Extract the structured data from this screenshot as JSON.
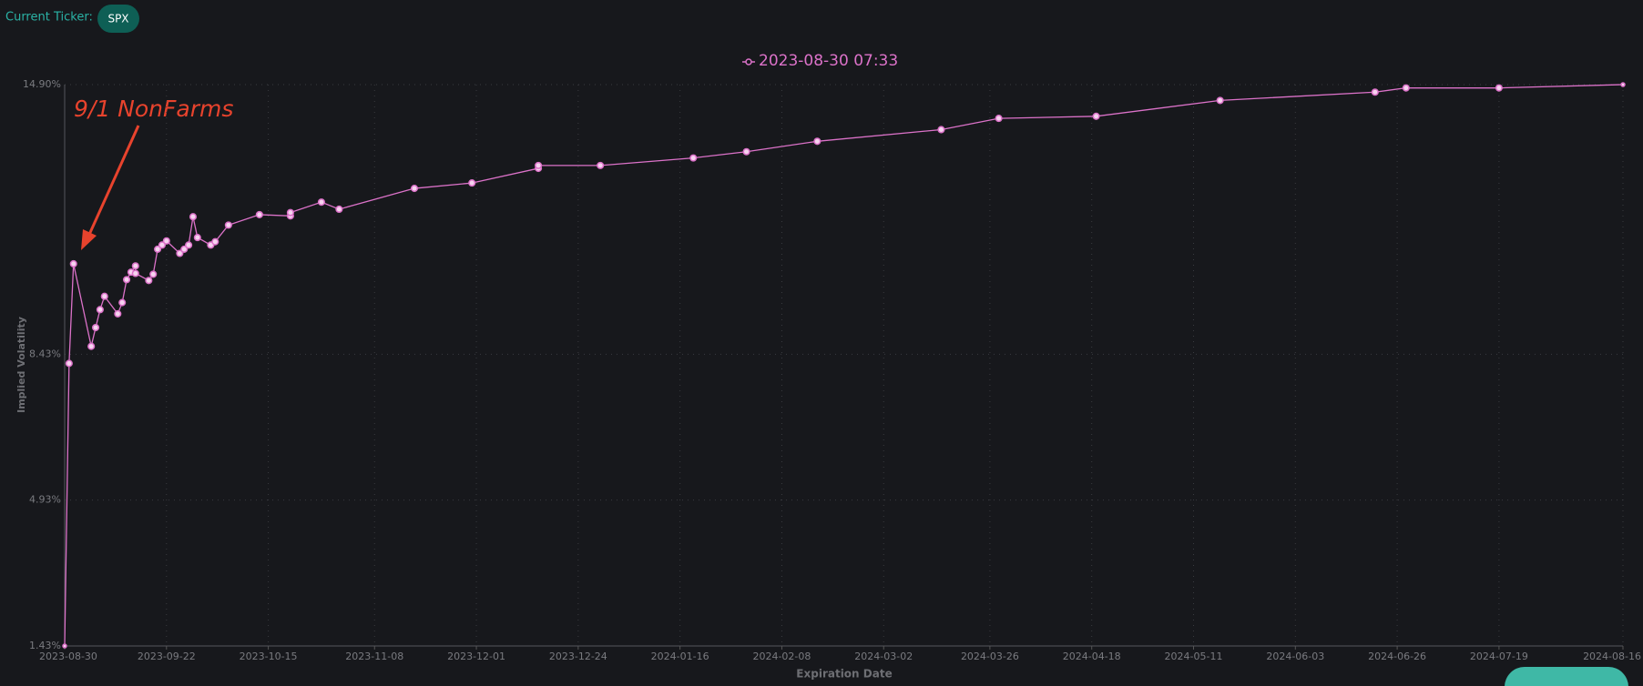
{
  "header": {
    "label": "Current Ticker:",
    "ticker": "SPX"
  },
  "chart_data": {
    "type": "line",
    "annotation": "9/1 NonFarms",
    "x_label": "Expiration Date",
    "y_label": "Implied Volatility",
    "x": [
      "2023-08-30",
      "2023-08-31",
      "2023-09-01",
      "2023-09-05",
      "2023-09-06",
      "2023-09-07",
      "2023-09-08",
      "2023-09-11",
      "2023-09-12",
      "2023-09-13",
      "2023-09-14",
      "2023-09-15",
      "2023-09-15",
      "2023-09-18",
      "2023-09-19",
      "2023-09-20",
      "2023-09-21",
      "2023-09-22",
      "2023-09-25",
      "2023-09-26",
      "2023-09-27",
      "2023-09-28",
      "2023-09-29",
      "2023-10-02",
      "2023-10-03",
      "2023-10-06",
      "2023-10-13",
      "2023-10-20",
      "2023-10-20",
      "2023-10-27",
      "2023-10-31",
      "2023-11-17",
      "2023-11-30",
      "2023-12-15",
      "2023-12-15",
      "2023-12-29",
      "2024-01-19",
      "2024-01-31",
      "2024-02-16",
      "2024-03-15",
      "2024-03-28",
      "2024-04-19",
      "2024-05-17",
      "2024-06-21",
      "2024-06-28",
      "2024-07-19",
      "2024-08-16"
    ],
    "series": [
      {
        "name": "2023-08-30 07:33",
        "color": "#dc72c9",
        "values": [
          1.43,
          8.21,
          10.6,
          8.62,
          9.07,
          9.5,
          9.82,
          9.4,
          9.67,
          10.22,
          10.4,
          10.55,
          10.37,
          10.2,
          10.35,
          10.95,
          11.05,
          11.15,
          10.85,
          10.95,
          11.05,
          11.73,
          11.23,
          11.05,
          11.13,
          11.53,
          11.78,
          11.75,
          11.83,
          12.08,
          11.91,
          12.41,
          12.54,
          12.89,
          12.96,
          12.96,
          13.14,
          13.29,
          13.54,
          13.82,
          14.09,
          14.14,
          14.52,
          14.72,
          14.82,
          14.82,
          14.9
        ]
      }
    ],
    "xlim": [
      "2023-08-30",
      "2024-08-16"
    ],
    "xticks": [
      "2023-08-30",
      "2023-09-22",
      "2023-10-15",
      "2023-11-08",
      "2023-12-01",
      "2023-12-24",
      "2024-01-16",
      "2024-02-08",
      "2024-03-02",
      "2024-03-26",
      "2024-04-18",
      "2024-05-11",
      "2024-06-03",
      "2024-06-26",
      "2024-07-19",
      "2024-08-16"
    ],
    "ylim": [
      1.43,
      14.9
    ],
    "yticks": [
      {
        "value": 1.43,
        "label": "1.43%"
      },
      {
        "value": 4.93,
        "label": "4.93%"
      },
      {
        "value": 8.43,
        "label": "8.43%"
      },
      {
        "value": 14.9,
        "label": "14.90%"
      }
    ],
    "grid": true
  }
}
